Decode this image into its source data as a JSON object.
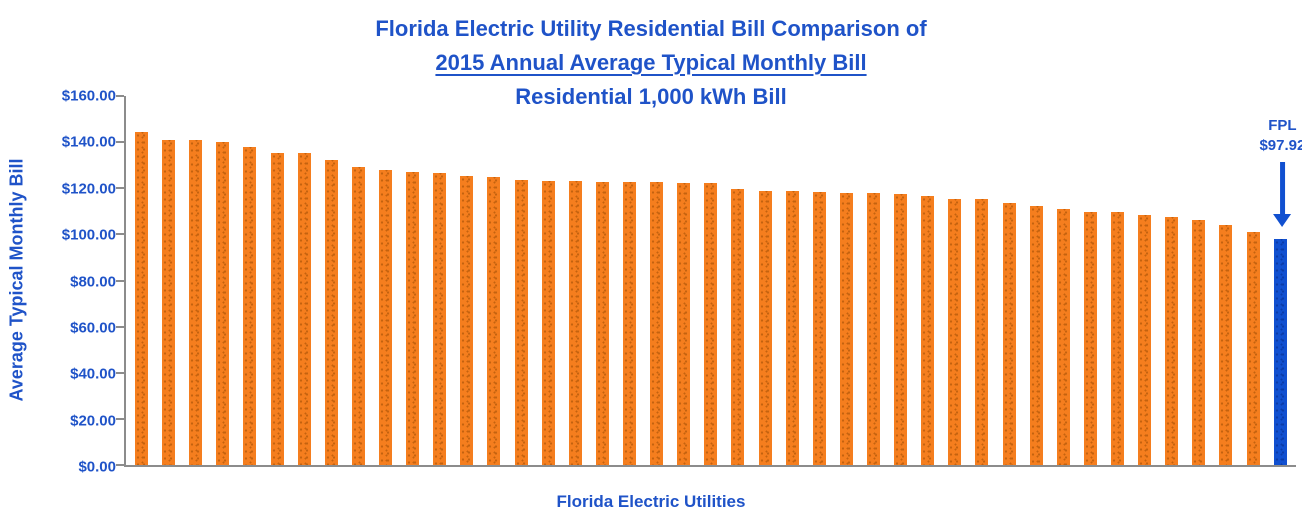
{
  "title": {
    "line1": "Florida Electric Utility Residential Bill Comparison of",
    "line2": "2015 Annual Average Typical Monthly Bill",
    "line3": "Residential 1,000 kWh Bill"
  },
  "y_axis": {
    "title": "Average Typical Monthly Bill",
    "tick_labels": [
      "$160.00",
      "$140.00",
      "$120.00",
      "$100.00",
      "$80.00",
      "$60.00",
      "$40.00",
      "$20.00",
      "$0.00"
    ]
  },
  "x_axis": {
    "title": "Florida Electric Utilities"
  },
  "annotation": {
    "line1": "FPL",
    "line2": "$97.92"
  },
  "colors": {
    "accent_blue": "#1F53C8",
    "bar_orange": "#F57E1E",
    "bar_orange_dot": "#C4620F",
    "bar_blue": "#1150D0",
    "bar_blue_dot": "#0B3CA8",
    "axis_gray": "#8C8C8C"
  },
  "chart_data": {
    "type": "bar",
    "title": "Florida Electric Utility Residential Bill Comparison of 2015 Annual Average Typical Monthly Bill — Residential 1,000 kWh Bill",
    "xlabel": "Florida Electric Utilities",
    "ylabel": "Average Typical Monthly Bill",
    "ylim": [
      0,
      160
    ],
    "ytick_step": 20,
    "gridlines": false,
    "legend": false,
    "categories_labeled": false,
    "bar_count": 43,
    "values": [
      144.3,
      140.9,
      140.9,
      140.0,
      138.1,
      135.5,
      135.1,
      132.3,
      129.3,
      128.0,
      127.1,
      126.7,
      125.4,
      124.7,
      123.7,
      123.3,
      123.2,
      122.9,
      122.8,
      122.5,
      122.3,
      122.1,
      119.8,
      118.9,
      118.7,
      118.5,
      117.9,
      117.8,
      117.5,
      116.7,
      115.4,
      115.3,
      113.5,
      112.5,
      111.2,
      109.8,
      109.6,
      108.5,
      107.6,
      106.3,
      104.1,
      101.2,
      97.92
    ],
    "highlight": {
      "index": 42,
      "label": "FPL",
      "value": 97.92,
      "value_label": "$97.92"
    }
  }
}
